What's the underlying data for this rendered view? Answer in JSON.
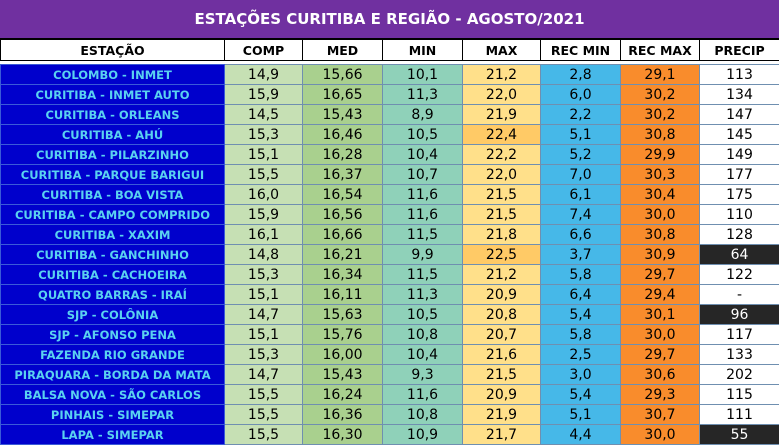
{
  "title": "ESTAÇÕES CURITIBA E REGIÃO - AGOSTO/2021",
  "columns": [
    "ESTAÇÃO",
    "COMP",
    "MED",
    "MIN",
    "MAX",
    "REC MIN",
    "REC MAX",
    "PRECIP"
  ],
  "colors": {
    "title_bg": "#7030a0",
    "station_bg": "#0000cc",
    "station_text": "#5ad2f0",
    "comp": "#c6e0b4",
    "med": "#a9d08e",
    "min": "#8fd1b9",
    "max": "#ffe08a",
    "rec_min": "#46b8e8",
    "rec_max": "#f98c2c",
    "precip_highlight": "#262626"
  },
  "rows": [
    {
      "station": "COLOMBO - INMET",
      "comp": "14,9",
      "med": "15,66",
      "min": "10,1",
      "max": "21,2",
      "rec_min": "2,8",
      "rec_max": "29,1",
      "precip": "113"
    },
    {
      "station": "CURITIBA - INMET AUTO",
      "comp": "15,9",
      "med": "16,65",
      "min": "11,3",
      "max": "22,0",
      "rec_min": "6,0",
      "rec_max": "30,2",
      "precip": "134"
    },
    {
      "station": "CURITIBA - ORLEANS",
      "comp": "14,5",
      "med": "15,43",
      "min": "8,9",
      "max": "21,9",
      "rec_min": "2,2",
      "rec_max": "30,2",
      "precip": "147"
    },
    {
      "station": "CURITIBA - AHÚ",
      "comp": "15,3",
      "med": "16,46",
      "min": "10,5",
      "max": "22,4",
      "rec_min": "5,1",
      "rec_max": "30,8",
      "precip": "145"
    },
    {
      "station": "CURITIBA - PILARZINHO",
      "comp": "15,1",
      "med": "16,28",
      "min": "10,4",
      "max": "22,2",
      "rec_min": "5,2",
      "rec_max": "29,9",
      "precip": "149"
    },
    {
      "station": "CURITIBA - PARQUE BARIGUI",
      "comp": "15,5",
      "med": "16,37",
      "min": "10,7",
      "max": "22,0",
      "rec_min": "7,0",
      "rec_max": "30,3",
      "precip": "177"
    },
    {
      "station": "CURITIBA - BOA VISTA",
      "comp": "16,0",
      "med": "16,54",
      "min": "11,6",
      "max": "21,5",
      "rec_min": "6,1",
      "rec_max": "30,4",
      "precip": "175"
    },
    {
      "station": "CURITIBA - CAMPO COMPRIDO",
      "comp": "15,9",
      "med": "16,56",
      "min": "11,6",
      "max": "21,5",
      "rec_min": "7,4",
      "rec_max": "30,0",
      "precip": "110"
    },
    {
      "station": "CURITIBA - XAXIM",
      "comp": "16,1",
      "med": "16,66",
      "min": "11,5",
      "max": "21,8",
      "rec_min": "6,6",
      "rec_max": "30,8",
      "precip": "128"
    },
    {
      "station": "CURITIBA - GANCHINHO",
      "comp": "14,8",
      "med": "16,21",
      "min": "9,9",
      "max": "22,5",
      "rec_min": "3,7",
      "rec_max": "30,9",
      "precip": "64",
      "highlight": true
    },
    {
      "station": "CURITIBA - CACHOEIRA",
      "comp": "15,3",
      "med": "16,34",
      "min": "11,5",
      "max": "21,2",
      "rec_min": "5,8",
      "rec_max": "29,7",
      "precip": "122"
    },
    {
      "station": "QUATRO BARRAS - IRAÍ",
      "comp": "15,1",
      "med": "16,11",
      "min": "11,3",
      "max": "20,9",
      "rec_min": "6,4",
      "rec_max": "29,4",
      "precip": "-"
    },
    {
      "station": "SJP - COLÔNIA",
      "comp": "14,7",
      "med": "15,63",
      "min": "10,5",
      "max": "20,8",
      "rec_min": "5,4",
      "rec_max": "30,1",
      "precip": "96",
      "highlight": true
    },
    {
      "station": "SJP - AFONSO PENA",
      "comp": "15,1",
      "med": "15,76",
      "min": "10,8",
      "max": "20,7",
      "rec_min": "5,8",
      "rec_max": "30,0",
      "precip": "117"
    },
    {
      "station": "FAZENDA RIO GRANDE",
      "comp": "15,3",
      "med": "16,00",
      "min": "10,4",
      "max": "21,6",
      "rec_min": "2,5",
      "rec_max": "29,7",
      "precip": "133"
    },
    {
      "station": "PIRAQUARA - BORDA DA MATA",
      "comp": "14,7",
      "med": "15,43",
      "min": "9,3",
      "max": "21,5",
      "rec_min": "3,0",
      "rec_max": "30,6",
      "precip": "202"
    },
    {
      "station": "BALSA NOVA - SÃO CARLOS",
      "comp": "15,5",
      "med": "16,24",
      "min": "11,6",
      "max": "20,9",
      "rec_min": "5,4",
      "rec_max": "29,3",
      "precip": "115"
    },
    {
      "station": "PINHAIS - SIMEPAR",
      "comp": "15,5",
      "med": "16,36",
      "min": "10,8",
      "max": "21,9",
      "rec_min": "5,1",
      "rec_max": "30,7",
      "precip": "111"
    },
    {
      "station": "LAPA - SIMEPAR",
      "comp": "15,5",
      "med": "16,30",
      "min": "10,9",
      "max": "21,7",
      "rec_min": "4,4",
      "rec_max": "30,0",
      "precip": "55",
      "highlight": true
    }
  ]
}
